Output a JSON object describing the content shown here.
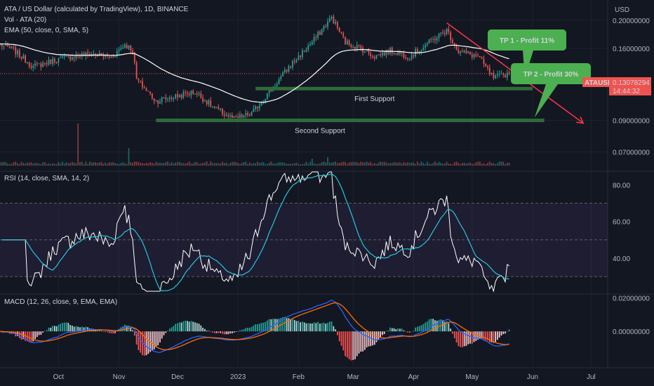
{
  "header": {
    "title": "ATA / US Dollar (calculated by TradingView), 1D, BINANCE",
    "vol_label": "Vol · ATA (20)",
    "ema_label": "EMA (50, close, 0, SMA, 5)",
    "currency": "USD"
  },
  "rsi_panel": {
    "label": "RSI (14, close, SMA, 14, 2)"
  },
  "macd_panel": {
    "label": "MACD (12, 26, close, 9, EMA, EMA)"
  },
  "annotations": {
    "tp1": "TP 1 - Profit 11%",
    "tp2": "TP 2 - Profit 30%",
    "first_support": "First Support",
    "second_support": "Second Support"
  },
  "price_tag": {
    "symbol": "ATAUSD",
    "price": "0.13078294",
    "countdown": "14:44:32"
  },
  "colors": {
    "background": "#131722",
    "candle_up": "#26a69a",
    "candle_down": "#ef5350",
    "ema": "#ffffff",
    "support": "#2e6b3a",
    "callout": "#4caf50",
    "trend_arrow": "#f23645",
    "rsi_line": "#ffffff",
    "rsi_ma": "#26c6da",
    "macd_line": "#2962ff",
    "signal_line": "#ff6d00"
  },
  "chart_data": [
    {
      "type": "candlestick",
      "name": "price",
      "x_ticks": [
        "Oct",
        "Nov",
        "Dec",
        "2023",
        "Feb",
        "Mar",
        "Apr",
        "May",
        "Jun",
        "Jul"
      ],
      "y_ticks": [
        "0.20000000",
        "0.16000000",
        "0.13078294",
        "0.09000000",
        "0.07000000"
      ],
      "ylim": [
        0.062,
        0.225
      ],
      "scale": "log",
      "anchors": [
        {
          "date": "2022-09-01",
          "close": 0.165
        },
        {
          "date": "2022-09-08",
          "close": 0.158
        },
        {
          "date": "2022-09-18",
          "close": 0.138
        },
        {
          "date": "2022-09-28",
          "close": 0.145
        },
        {
          "date": "2022-10-08",
          "close": 0.15
        },
        {
          "date": "2022-10-18",
          "close": 0.153
        },
        {
          "date": "2022-10-28",
          "close": 0.149
        },
        {
          "date": "2022-11-04",
          "close": 0.165
        },
        {
          "date": "2022-11-08",
          "close": 0.158
        },
        {
          "date": "2022-11-10",
          "close": 0.125
        },
        {
          "date": "2022-11-20",
          "close": 0.105
        },
        {
          "date": "2022-11-30",
          "close": 0.109
        },
        {
          "date": "2022-12-10",
          "close": 0.113
        },
        {
          "date": "2022-12-20",
          "close": 0.099
        },
        {
          "date": "2022-12-30",
          "close": 0.091
        },
        {
          "date": "2023-01-08",
          "close": 0.095
        },
        {
          "date": "2023-01-18",
          "close": 0.115
        },
        {
          "date": "2023-01-28",
          "close": 0.14
        },
        {
          "date": "2023-02-08",
          "close": 0.168
        },
        {
          "date": "2023-02-18",
          "close": 0.205
        },
        {
          "date": "2023-02-25",
          "close": 0.168
        },
        {
          "date": "2023-03-05",
          "close": 0.16
        },
        {
          "date": "2023-03-12",
          "close": 0.15
        },
        {
          "date": "2023-03-20",
          "close": 0.157
        },
        {
          "date": "2023-03-30",
          "close": 0.15
        },
        {
          "date": "2023-04-10",
          "close": 0.17
        },
        {
          "date": "2023-04-18",
          "close": 0.185
        },
        {
          "date": "2023-04-24",
          "close": 0.156
        },
        {
          "date": "2023-05-04",
          "close": 0.15
        },
        {
          "date": "2023-05-12",
          "close": 0.126
        },
        {
          "date": "2023-05-20",
          "close": 0.131
        }
      ],
      "support_lines": [
        {
          "label": "First Support",
          "price": 0.116,
          "from": "2023-01-10",
          "to": "2023-06-01"
        },
        {
          "label": "Second Support",
          "price": 0.09,
          "from": "2022-11-20",
          "to": "2023-06-07"
        }
      ],
      "trend_line": {
        "from": {
          "date": "2023-04-18",
          "price": 0.196
        },
        "to": {
          "date": "2023-06-27",
          "price": 0.088
        }
      }
    },
    {
      "type": "bar",
      "name": "volume",
      "series": [
        {
          "name": "Vol · ATA (20)"
        }
      ]
    },
    {
      "type": "line",
      "name": "rsi",
      "y_ticks": [
        "80.00",
        "60.00",
        "40.00"
      ],
      "ylim": [
        22,
        87
      ],
      "bands": {
        "upper": 70,
        "middle": 50,
        "lower": 30
      }
    },
    {
      "type": "line",
      "name": "macd",
      "y_ticks": [
        "0.02000000",
        "0.00000000"
      ],
      "ylim": [
        -0.021,
        0.022
      ]
    }
  ]
}
